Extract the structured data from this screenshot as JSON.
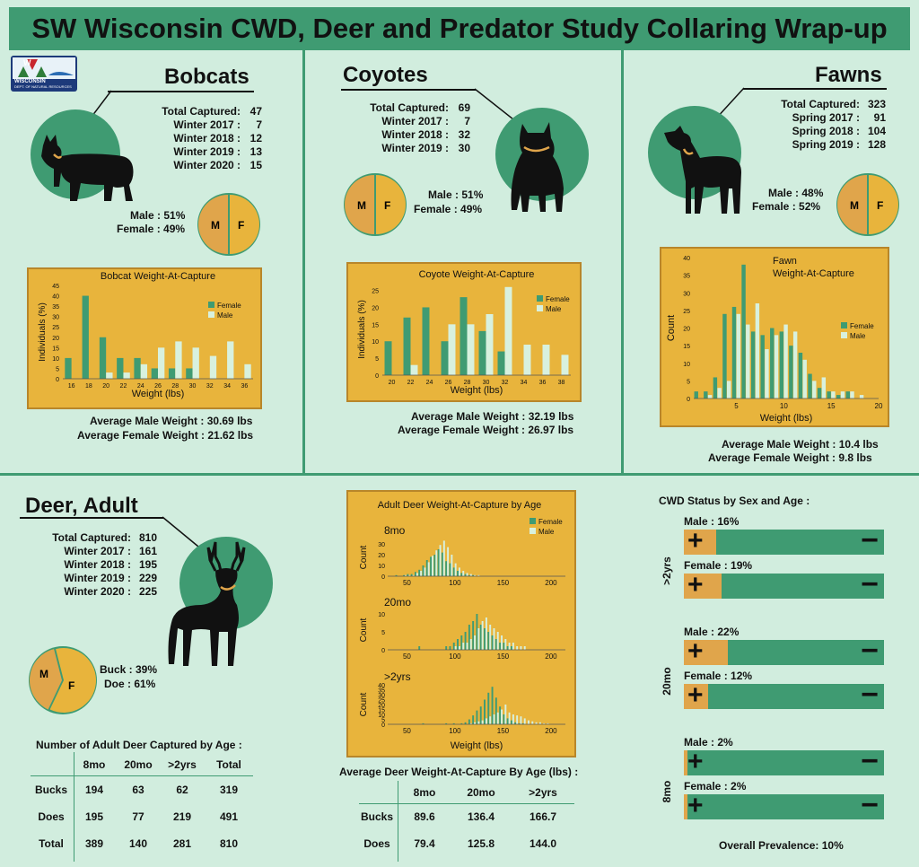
{
  "title": "SW Wisconsin CWD, Deer and Predator Study Collaring Wrap-up",
  "logo": {
    "text": "WISCONSIN",
    "subtext": "DEPT. OF NATURAL RESOURCES",
    "letter": "W"
  },
  "colors": {
    "green": "#3f9b72",
    "gold": "#e8b43c",
    "orange": "#e0a54b",
    "female": "#3f9b72",
    "male": "#d8f1de",
    "bg": "#d1edde"
  },
  "bobcats": {
    "title": "Bobcats",
    "stats": [
      [
        "Total Captured:",
        "47"
      ],
      [
        "Winter 2017 :",
        "7"
      ],
      [
        "Winter 2018 :",
        "12"
      ],
      [
        "Winter 2019 :",
        "13"
      ],
      [
        "Winter 2020 :",
        "15"
      ]
    ],
    "male": "Male : 51%",
    "female": "Female : 49%",
    "avg_male": "Average Male Weight : 30.69 lbs",
    "avg_female": "Average Female Weight : 21.62 lbs"
  },
  "coyotes": {
    "title": "Coyotes",
    "stats": [
      [
        "Total Captured:",
        "69"
      ],
      [
        "Winter 2017 :",
        "7"
      ],
      [
        "Winter 2018 :",
        "32"
      ],
      [
        "Winter 2019 :",
        "30"
      ]
    ],
    "male": "Male : 51%",
    "female": "Female : 49%",
    "avg_male": "Average Male Weight : 32.19 lbs",
    "avg_female": "Average Female Weight : 26.97 lbs"
  },
  "fawns": {
    "title": "Fawns",
    "stats": [
      [
        "Total Captured:",
        "323"
      ],
      [
        "Spring 2017 :",
        "91"
      ],
      [
        "Spring 2018 :",
        "104"
      ],
      [
        "Spring 2019 :",
        "128"
      ]
    ],
    "male": "Male : 48%",
    "female": "Female : 52%",
    "avg_male": "Average Male Weight : 10.4 lbs",
    "avg_female": "Average Female Weight :   9.8 lbs"
  },
  "deer": {
    "title": "Deer, Adult",
    "stats": [
      [
        "Total Captured:",
        "810"
      ],
      [
        "Winter 2017 :",
        "161"
      ],
      [
        "Winter 2018 :",
        "195"
      ],
      [
        "Winter 2019 :",
        "229"
      ],
      [
        "Winter 2020 :",
        "225"
      ]
    ],
    "buck": "Buck : 39%",
    "doe": "Doe : 61%",
    "age_table_title": "Number of Adult Deer Captured by Age :",
    "age_table": {
      "headers": [
        "",
        "8mo",
        "20mo",
        ">2yrs",
        "Total"
      ],
      "rows": [
        [
          "Bucks",
          "194",
          "63",
          "62",
          "319"
        ],
        [
          "Does",
          "195",
          "77",
          "219",
          "491"
        ],
        [
          "Total",
          "389",
          "140",
          "281",
          "810"
        ]
      ]
    },
    "weight_table_title": "Average Deer Weight-At-Capture By Age (lbs) :",
    "weight_table": {
      "headers": [
        "",
        "8mo",
        "20mo",
        ">2yrs"
      ],
      "rows": [
        [
          "Bucks",
          "89.6",
          "136.4",
          "166.7"
        ],
        [
          "Does",
          "79.4",
          "125.8",
          "144.0"
        ]
      ]
    }
  },
  "pie_labels": {
    "m": "M",
    "f": "F"
  },
  "cwd": {
    "title": "CWD Status by Sex and Age :",
    "plus": "+",
    "minus": "−",
    "groups": [
      {
        "age": ">2yrs",
        "rows": [
          {
            "label": "Male : 16%",
            "pct": 16
          },
          {
            "label": "Female : 19%",
            "pct": 19
          }
        ]
      },
      {
        "age": "20mo",
        "rows": [
          {
            "label": "Male : 22%",
            "pct": 22
          },
          {
            "label": "Female : 12%",
            "pct": 12
          }
        ]
      },
      {
        "age": "8mo",
        "rows": [
          {
            "label": "Male : 2%",
            "pct": 2
          },
          {
            "label": "Female : 2%",
            "pct": 2
          }
        ]
      }
    ],
    "overall": "Overall Prevalence: 10%"
  },
  "chart_data": [
    {
      "id": "bobcat",
      "type": "bar",
      "title": "Bobcat Weight-At-Capture",
      "xlabel": "Weight (lbs)",
      "ylabel": "Individuals (%)",
      "ylim": [
        0,
        45
      ],
      "yticks": [
        0,
        5,
        10,
        15,
        20,
        25,
        30,
        35,
        40,
        45
      ],
      "categories": [
        "16",
        "18",
        "20",
        "22",
        "24",
        "26",
        "28",
        "30",
        "32",
        "34",
        "36"
      ],
      "series": [
        {
          "name": "Female",
          "values": [
            10,
            40,
            20,
            10,
            10,
            5,
            5,
            5,
            0,
            0,
            0
          ]
        },
        {
          "name": "Male",
          "values": [
            0,
            0,
            3,
            3,
            7,
            15,
            18,
            15,
            11,
            18,
            7
          ]
        }
      ]
    },
    {
      "id": "coyote",
      "type": "bar",
      "title": "Coyote Weight-At-Capture",
      "xlabel": "Weight (lbs)",
      "ylabel": "Individuals (%)",
      "ylim": [
        0,
        27
      ],
      "yticks": [
        0,
        5,
        10,
        15,
        20,
        25
      ],
      "categories": [
        "20",
        "22",
        "24",
        "26",
        "28",
        "30",
        "32",
        "34",
        "36",
        "38"
      ],
      "series": [
        {
          "name": "Female",
          "values": [
            10,
            17,
            20,
            10,
            23,
            13,
            7,
            0,
            0,
            0
          ]
        },
        {
          "name": "Male",
          "values": [
            0,
            3,
            0,
            15,
            15,
            18,
            26,
            9,
            9,
            6
          ]
        }
      ]
    },
    {
      "id": "fawn",
      "type": "bar",
      "title": "Fawn Weight-At-Capture",
      "xlabel": "Weight (lbs)",
      "ylabel": "Count",
      "ylim": [
        0,
        40
      ],
      "yticks": [
        0,
        5,
        10,
        15,
        20,
        25,
        30,
        35,
        40
      ],
      "xticks": [
        5,
        10,
        15,
        20
      ],
      "xlim": [
        0.5,
        20
      ],
      "categories": [
        1,
        2,
        3,
        4,
        5,
        6,
        7,
        8,
        9,
        10,
        11,
        12,
        13,
        14,
        15,
        16,
        17,
        18,
        19
      ],
      "series": [
        {
          "name": "Female",
          "values": [
            2,
            2,
            6,
            24,
            26,
            38,
            19,
            18,
            20,
            19,
            15,
            13,
            7,
            3,
            2,
            1,
            2,
            0,
            0
          ]
        },
        {
          "name": "Male",
          "values": [
            0,
            1,
            3,
            5,
            24,
            21,
            27,
            14,
            18,
            21,
            19,
            11,
            5,
            6,
            2,
            2,
            2,
            1,
            0
          ]
        }
      ]
    },
    {
      "id": "deer_8mo",
      "type": "bar",
      "title": "Adult Deer Weight-At-Capture by Age",
      "panel": "8mo",
      "xlabel": "",
      "ylabel": "Count",
      "ylim": [
        0,
        35
      ],
      "yticks": [
        0,
        10,
        20,
        30
      ],
      "xticks": [
        50,
        100,
        150,
        200
      ],
      "xlim": [
        30,
        215
      ],
      "binwidth": 4,
      "categories": [
        38,
        42,
        46,
        50,
        54,
        58,
        62,
        66,
        70,
        74,
        78,
        82,
        86,
        90,
        94,
        98,
        102,
        106,
        110,
        114,
        118,
        122
      ],
      "series": [
        {
          "name": "Female",
          "values": [
            1,
            0,
            1,
            2,
            2,
            4,
            6,
            10,
            15,
            18,
            20,
            25,
            22,
            14,
            12,
            8,
            5,
            3,
            2,
            1,
            1,
            0
          ]
        },
        {
          "name": "Male",
          "values": [
            0,
            0,
            1,
            1,
            1,
            3,
            5,
            8,
            13,
            19,
            24,
            29,
            33,
            27,
            20,
            12,
            8,
            5,
            3,
            2,
            1,
            1
          ]
        }
      ]
    },
    {
      "id": "deer_20mo",
      "type": "bar",
      "panel": "20mo",
      "xlabel": "",
      "ylabel": "Count",
      "ylim": [
        0,
        11
      ],
      "yticks": [
        0,
        5,
        10
      ],
      "xticks": [
        50,
        100,
        150,
        200
      ],
      "xlim": [
        30,
        215
      ],
      "binwidth": 4,
      "categories": [
        62,
        90,
        94,
        98,
        102,
        106,
        110,
        114,
        118,
        122,
        126,
        130,
        134,
        138,
        142,
        146,
        150,
        154,
        158,
        162,
        166,
        170
      ],
      "series": [
        {
          "name": "Female",
          "values": [
            1,
            1,
            1,
            2,
            3,
            4,
            5,
            7,
            8,
            10,
            7,
            6,
            5,
            4,
            3,
            2,
            2,
            1,
            1,
            0,
            0,
            0
          ]
        },
        {
          "name": "Male",
          "values": [
            0,
            0,
            0,
            1,
            1,
            2,
            2,
            3,
            4,
            6,
            8,
            9,
            7,
            6,
            5,
            4,
            3,
            2,
            2,
            1,
            1,
            1
          ]
        }
      ]
    },
    {
      "id": "deer_2yrs",
      "type": "bar",
      "panel": ">2yrs",
      "xlabel": "Weight (lbs)",
      "ylabel": "Count",
      "ylim": [
        0,
        40
      ],
      "yticks": [
        0,
        5,
        10,
        15,
        20,
        25,
        30,
        35,
        40
      ],
      "xticks": [
        50,
        100,
        150,
        200
      ],
      "xlim": [
        30,
        215
      ],
      "binwidth": 4,
      "categories": [
        66,
        90,
        98,
        106,
        110,
        114,
        118,
        122,
        126,
        130,
        134,
        138,
        142,
        146,
        150,
        154,
        158,
        162,
        166,
        170,
        174,
        178,
        182,
        186,
        190,
        194
      ],
      "series": [
        {
          "name": "Female",
          "values": [
            1,
            1,
            1,
            1,
            2,
            5,
            9,
            14,
            18,
            25,
            32,
            38,
            27,
            18,
            10,
            6,
            4,
            2,
            1,
            1,
            0,
            0,
            0,
            0,
            0,
            0
          ]
        },
        {
          "name": "Male",
          "values": [
            0,
            0,
            0,
            0,
            0,
            1,
            2,
            3,
            4,
            6,
            8,
            10,
            12,
            15,
            20,
            12,
            10,
            9,
            8,
            6,
            4,
            3,
            2,
            2,
            1,
            1
          ]
        }
      ]
    }
  ]
}
